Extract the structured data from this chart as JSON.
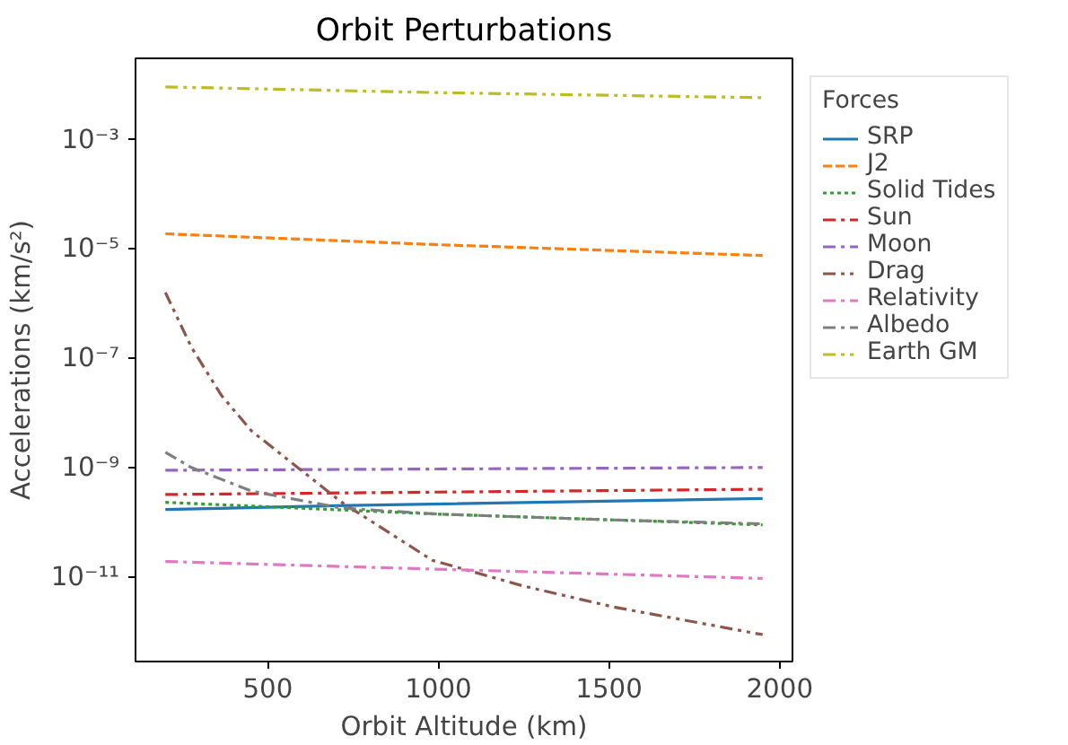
{
  "chart_data": {
    "type": "line",
    "title": "Orbit Perturbations",
    "xlabel": "Orbit Altitude (km)",
    "ylabel": "Accelerations (km/s²)",
    "legend_title": "Forces",
    "legend": "right",
    "log": "y",
    "grid": false,
    "xlim": [
      112.5,
      2037.5
    ],
    "xticks": [
      500,
      1000,
      1500,
      2000
    ],
    "ylim": [
      2.8e-13,
      0.031
    ],
    "yticks": [
      {
        "value": 0.001,
        "label": "10⁻³"
      },
      {
        "value": 1e-05,
        "label": "10⁻⁵"
      },
      {
        "value": 1e-07,
        "label": "10⁻⁷"
      },
      {
        "value": 1e-09,
        "label": "10⁻⁹"
      },
      {
        "value": 1e-11,
        "label": "10⁻¹¹"
      }
    ],
    "series": [
      {
        "name": "SRP",
        "color": "#1f77b4",
        "line_style": "solid",
        "x": [
          200,
          700,
          1950
        ],
        "values": [
          1.7e-10,
          2e-10,
          2.7e-10
        ]
      },
      {
        "name": "J2",
        "color": "#ff7f0e",
        "line_style": "dashed",
        "x": [
          200,
          1000,
          1950
        ],
        "values": [
          1.9e-05,
          1.2e-05,
          7.6e-06
        ]
      },
      {
        "name": "Solid Tides",
        "color": "#2ca02c",
        "line_style": "dotted",
        "x": [
          200,
          1000,
          1950
        ],
        "values": [
          2.3e-10,
          1.4e-10,
          8.9e-11
        ]
      },
      {
        "name": "Sun",
        "color": "#d62728",
        "line_style": "dashdot",
        "x": [
          200,
          1950
        ],
        "values": [
          3.2e-10,
          4e-10
        ]
      },
      {
        "name": "Moon",
        "color": "#9467bd",
        "line_style": "dashdot",
        "x": [
          200,
          1950
        ],
        "values": [
          8.9e-10,
          1e-09
        ]
      },
      {
        "name": "Drag",
        "color": "#8c564b",
        "line_style": "dashdotdot",
        "x": [
          200,
          276,
          364,
          452,
          541,
          717,
          982,
          1247,
          1512,
          1950
        ],
        "values": [
          1.6e-06,
          1.6e-07,
          2.1e-08,
          4.7e-09,
          1.7e-09,
          2.3e-10,
          2e-11,
          6.8e-12,
          2.8e-12,
          8.7e-13
        ]
      },
      {
        "name": "Relativity",
        "color": "#e377c2",
        "line_style": "dashdot",
        "x": [
          200,
          1950
        ],
        "values": [
          1.9e-11,
          9.3e-12
        ]
      },
      {
        "name": "Albedo",
        "color": "#7f7f7f",
        "line_style": "dashdot",
        "x": [
          200,
          276,
          452,
          717,
          1000,
          1500,
          1950
        ],
        "values": [
          1.9e-09,
          1e-09,
          3.7e-10,
          1.8e-10,
          1.4e-10,
          1.1e-10,
          9.3e-11
        ]
      },
      {
        "name": "Earth GM",
        "color": "#bcbd22",
        "line_style": "dashdotdot",
        "x": [
          200,
          1000,
          1950
        ],
        "values": [
          0.0093,
          0.0073,
          0.0059
        ]
      }
    ]
  }
}
